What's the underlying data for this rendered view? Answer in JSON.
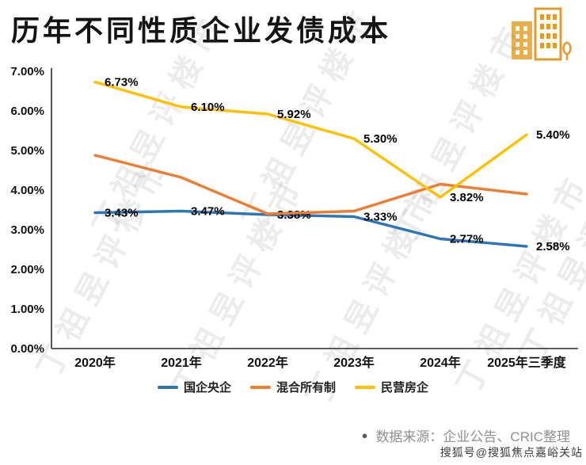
{
  "page": {
    "title": "历年不同性质企业发债成本"
  },
  "logo": {
    "icon": "city-buildings-icon"
  },
  "chart_data": {
    "type": "line",
    "title": "历年不同性质企业发债成本",
    "categories": [
      "2020年",
      "2021年",
      "2022年",
      "2023年",
      "2024年",
      "2025年三季度"
    ],
    "y_tick_labels": [
      "7.00%",
      "6.00%",
      "5.00%",
      "4.00%",
      "3.00%",
      "2.00%",
      "1.00%",
      "0.00%"
    ],
    "ylim": [
      0,
      7
    ],
    "grid": false,
    "legend_position": "bottom",
    "series": [
      {
        "name": "国企央企",
        "color": "#2E75B6",
        "values": [
          3.43,
          3.47,
          3.38,
          3.33,
          2.77,
          2.58
        ],
        "point_labels": [
          "3.43%",
          "3.47%",
          "3.38%",
          "3.33%",
          "2.77%",
          "2.58%"
        ]
      },
      {
        "name": "混合所有制",
        "color": "#ED7D31",
        "values": [
          4.88,
          4.32,
          3.4,
          3.47,
          4.15,
          3.9
        ],
        "point_labels": [
          "",
          "",
          "",
          "",
          "",
          ""
        ]
      },
      {
        "name": "民营房企",
        "color": "#FFC000",
        "values": [
          6.73,
          6.1,
          5.92,
          5.3,
          3.82,
          5.4
        ],
        "point_labels": [
          "6.73%",
          "6.10%",
          "5.92%",
          "5.30%",
          "3.82%",
          "5.40%"
        ]
      }
    ]
  },
  "watermarks": {
    "diagonal": "丁祖昱评楼市",
    "corner": "搜狐号@搜狐焦点嘉峪关站"
  },
  "footer": {
    "bullet": "●",
    "source": "数据来源：企业公告、CRIC整理"
  }
}
